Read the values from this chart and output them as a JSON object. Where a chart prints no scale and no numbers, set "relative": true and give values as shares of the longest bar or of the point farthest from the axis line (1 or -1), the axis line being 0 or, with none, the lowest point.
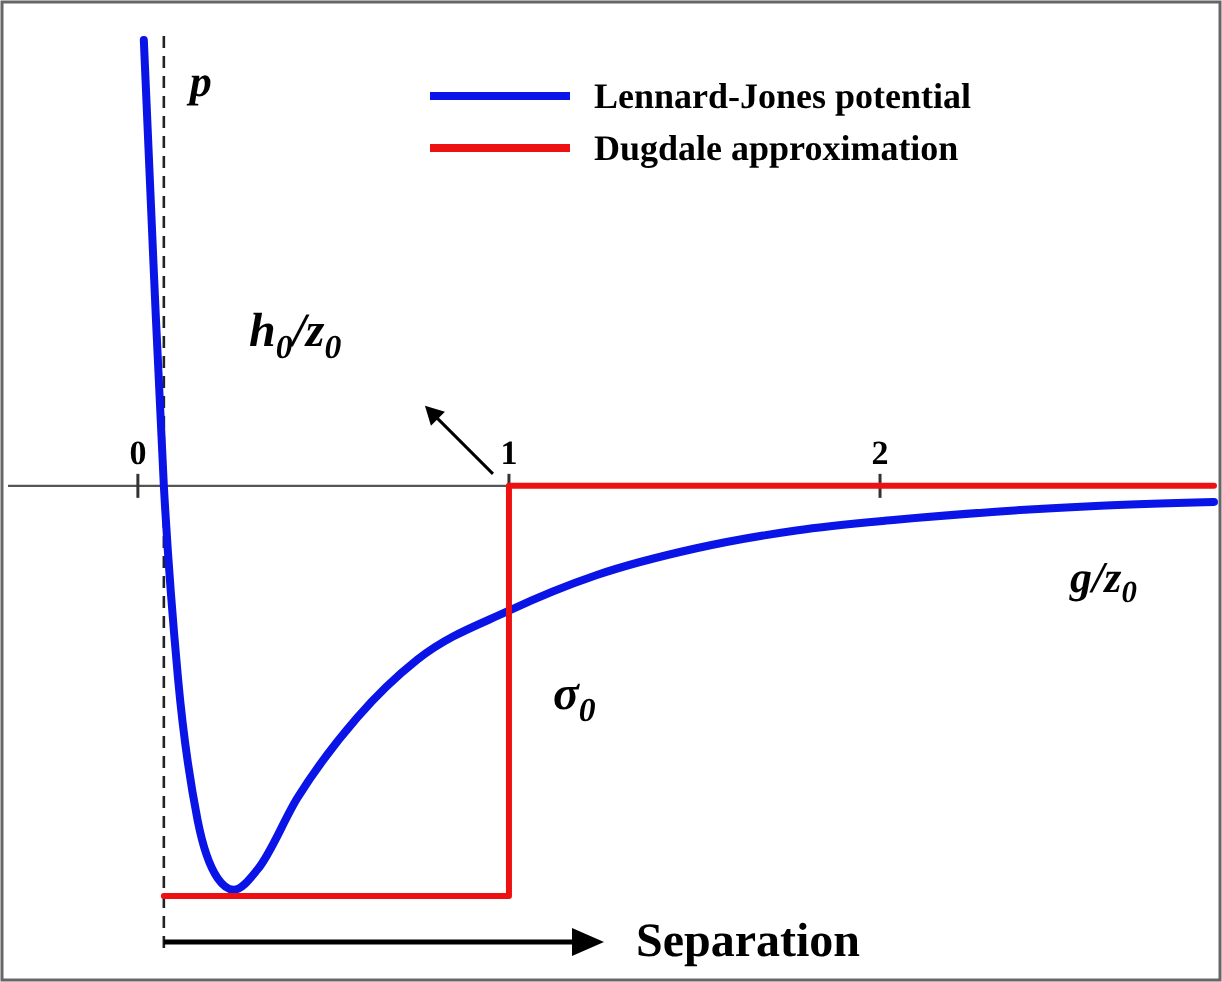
{
  "chart_data": {
    "type": "line",
    "relative": true,
    "xlabel": "g/z$_{0}$",
    "ylabel": "p",
    "xlim": [
      -0.35,
      2.9
    ],
    "xticks": [
      0,
      1,
      2
    ],
    "legend": "top right",
    "line_style": "solid",
    "marker": "none",
    "series": [
      {
        "name": "Lennard-Jones potential",
        "color": "#0a14e6",
        "x": [
          0.016,
          0.043,
          0.07,
          0.108,
          0.161,
          0.215,
          0.258,
          0.323,
          0.43,
          0.591,
          0.753,
          1.0,
          1.237,
          1.505,
          1.774,
          2.043,
          2.312,
          2.581,
          2.9
        ],
        "values": [
          1.0,
          0.48,
          0,
          -0.43,
          -0.75,
          -0.88,
          -0.906,
          -0.86,
          -0.7,
          -0.52,
          -0.39,
          -0.28,
          -0.2,
          -0.14,
          -0.1,
          -0.076,
          -0.058,
          -0.045,
          -0.036
        ]
      },
      {
        "name": "Dugdale approximation",
        "color": "#ee1111",
        "x": [
          0.07,
          1.0,
          1.0,
          2.9
        ],
        "values": [
          -0.92,
          -0.92,
          0,
          0
        ]
      }
    ],
    "ref_lines": [
      {
        "axis": "x",
        "value": 0.07,
        "line_style": "dashed",
        "color": "#222222"
      }
    ],
    "annotations": [
      "h$_{0}$/z$_{0}$",
      "σ$_{0}$",
      "Separation"
    ]
  }
}
